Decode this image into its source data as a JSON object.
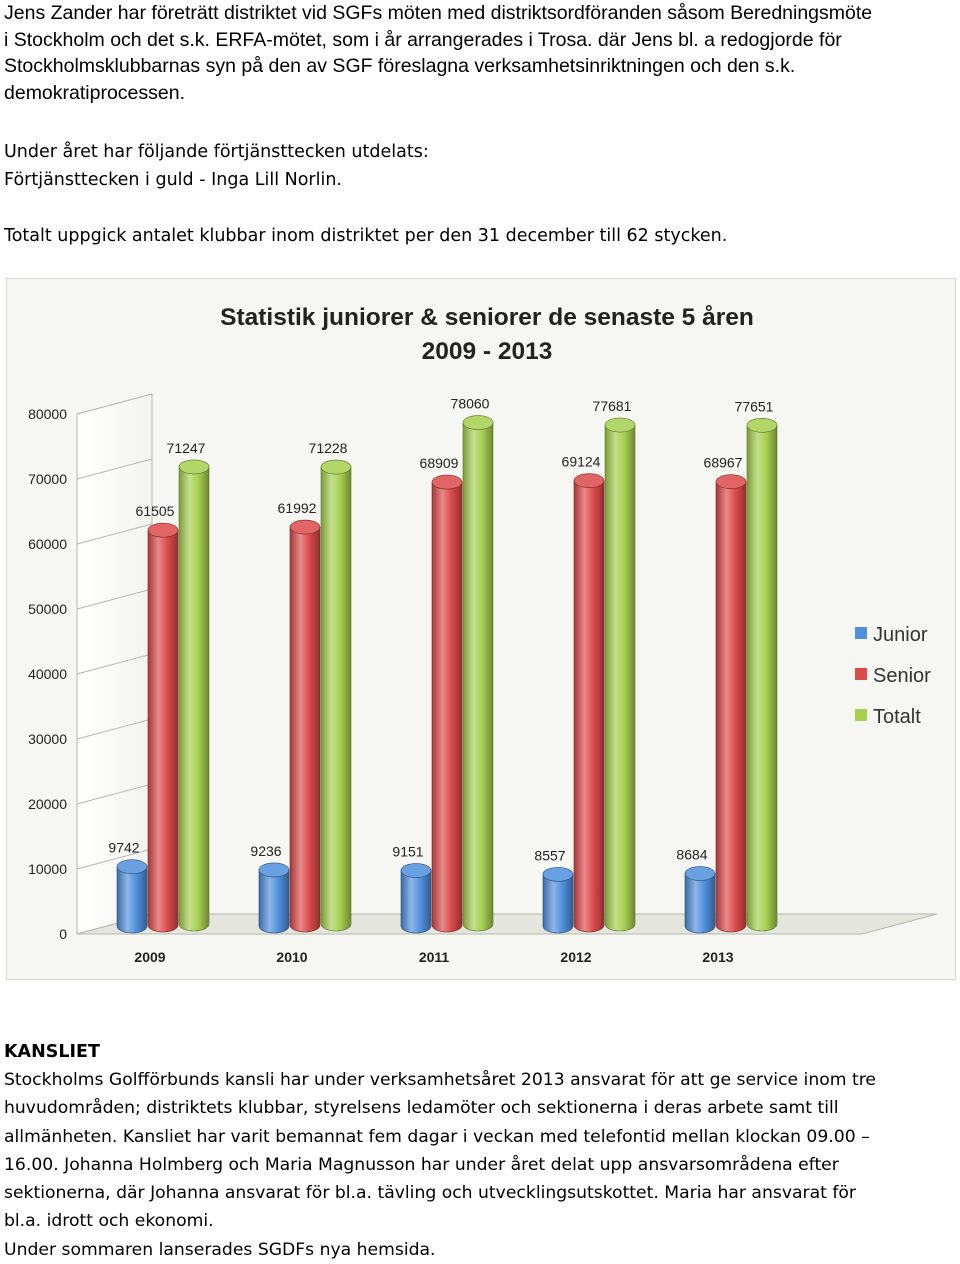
{
  "intro_lines": [
    "Jens Zander har företrätt distriktet vid SGFs möten med distriktsordföranden såsom Beredningsmöte",
    "i Stockholm och det s.k. ERFA-mötet, som i år arrangerades i Trosa. där Jens bl. a redogjorde för",
    "Stockholmsklubbarnas syn på den av SGF föreslagna verksamhetsinriktningen och den s.k.",
    "demokratiprocessen."
  ],
  "awards_lines": [
    "Under året har följande förtjänsttecken utdelats:",
    "Förtjänsttecken i guld - Inga Lill Norlin."
  ],
  "total_clubs": "Totalt uppgick antalet klubbar inom distriktet per den 31 december till 62 stycken.",
  "kansliet_heading": "KANSLIET",
  "kansliet_lines": [
    "Stockholms Golfförbunds kansli har under verksamhetsåret 2013 ansvarat för att ge service inom tre",
    "huvudområden; distriktets klubbar, styrelsens ledamöter och sektionerna i deras arbete samt till",
    "allmänheten. Kansliet har varit bemannat fem dagar i veckan med telefontid mellan klockan 09.00 –",
    "16.00. Johanna Holmberg och Maria Magnusson har under året delat upp ansvarsområdena efter",
    "sektionerna, där Johanna ansvarat för bl.a. tävling och utvecklingsutskottet. Maria har ansvarat för",
    "bl.a. idrott och ekonomi.",
    "Under sommaren lanserades SGDFs nya hemsida."
  ],
  "chart_data": {
    "type": "bar",
    "title": "Statistik juniorer & seniorer de senaste 5 åren",
    "subtitle": "2009 - 2013",
    "categories": [
      "2009",
      "2010",
      "2011",
      "2012",
      "2013"
    ],
    "series": [
      {
        "name": "Junior",
        "color": "#4f8fdc",
        "values": [
          9742,
          9236,
          9151,
          8557,
          8684
        ]
      },
      {
        "name": "Senior",
        "color": "#dc4a4a",
        "values": [
          61505,
          61992,
          68909,
          69124,
          68967
        ]
      },
      {
        "name": "Totalt",
        "color": "#a6cf4f",
        "values": [
          71247,
          71228,
          78060,
          77681,
          77651
        ]
      }
    ],
    "value_labels": [
      [
        "9742",
        "9236",
        "9151",
        "8557",
        "8684"
      ],
      [
        "61505",
        "61992",
        "68909",
        "69124",
        "68967"
      ],
      [
        "71247",
        "71228",
        "78060",
        "77681",
        "77651"
      ]
    ],
    "yticks": [
      0,
      10000,
      20000,
      30000,
      40000,
      50000,
      60000,
      70000,
      80000
    ],
    "ylim": [
      0,
      80000
    ],
    "xlabel": "",
    "ylabel": "",
    "grid": true,
    "legend": "right",
    "style": "3d cylinders"
  }
}
